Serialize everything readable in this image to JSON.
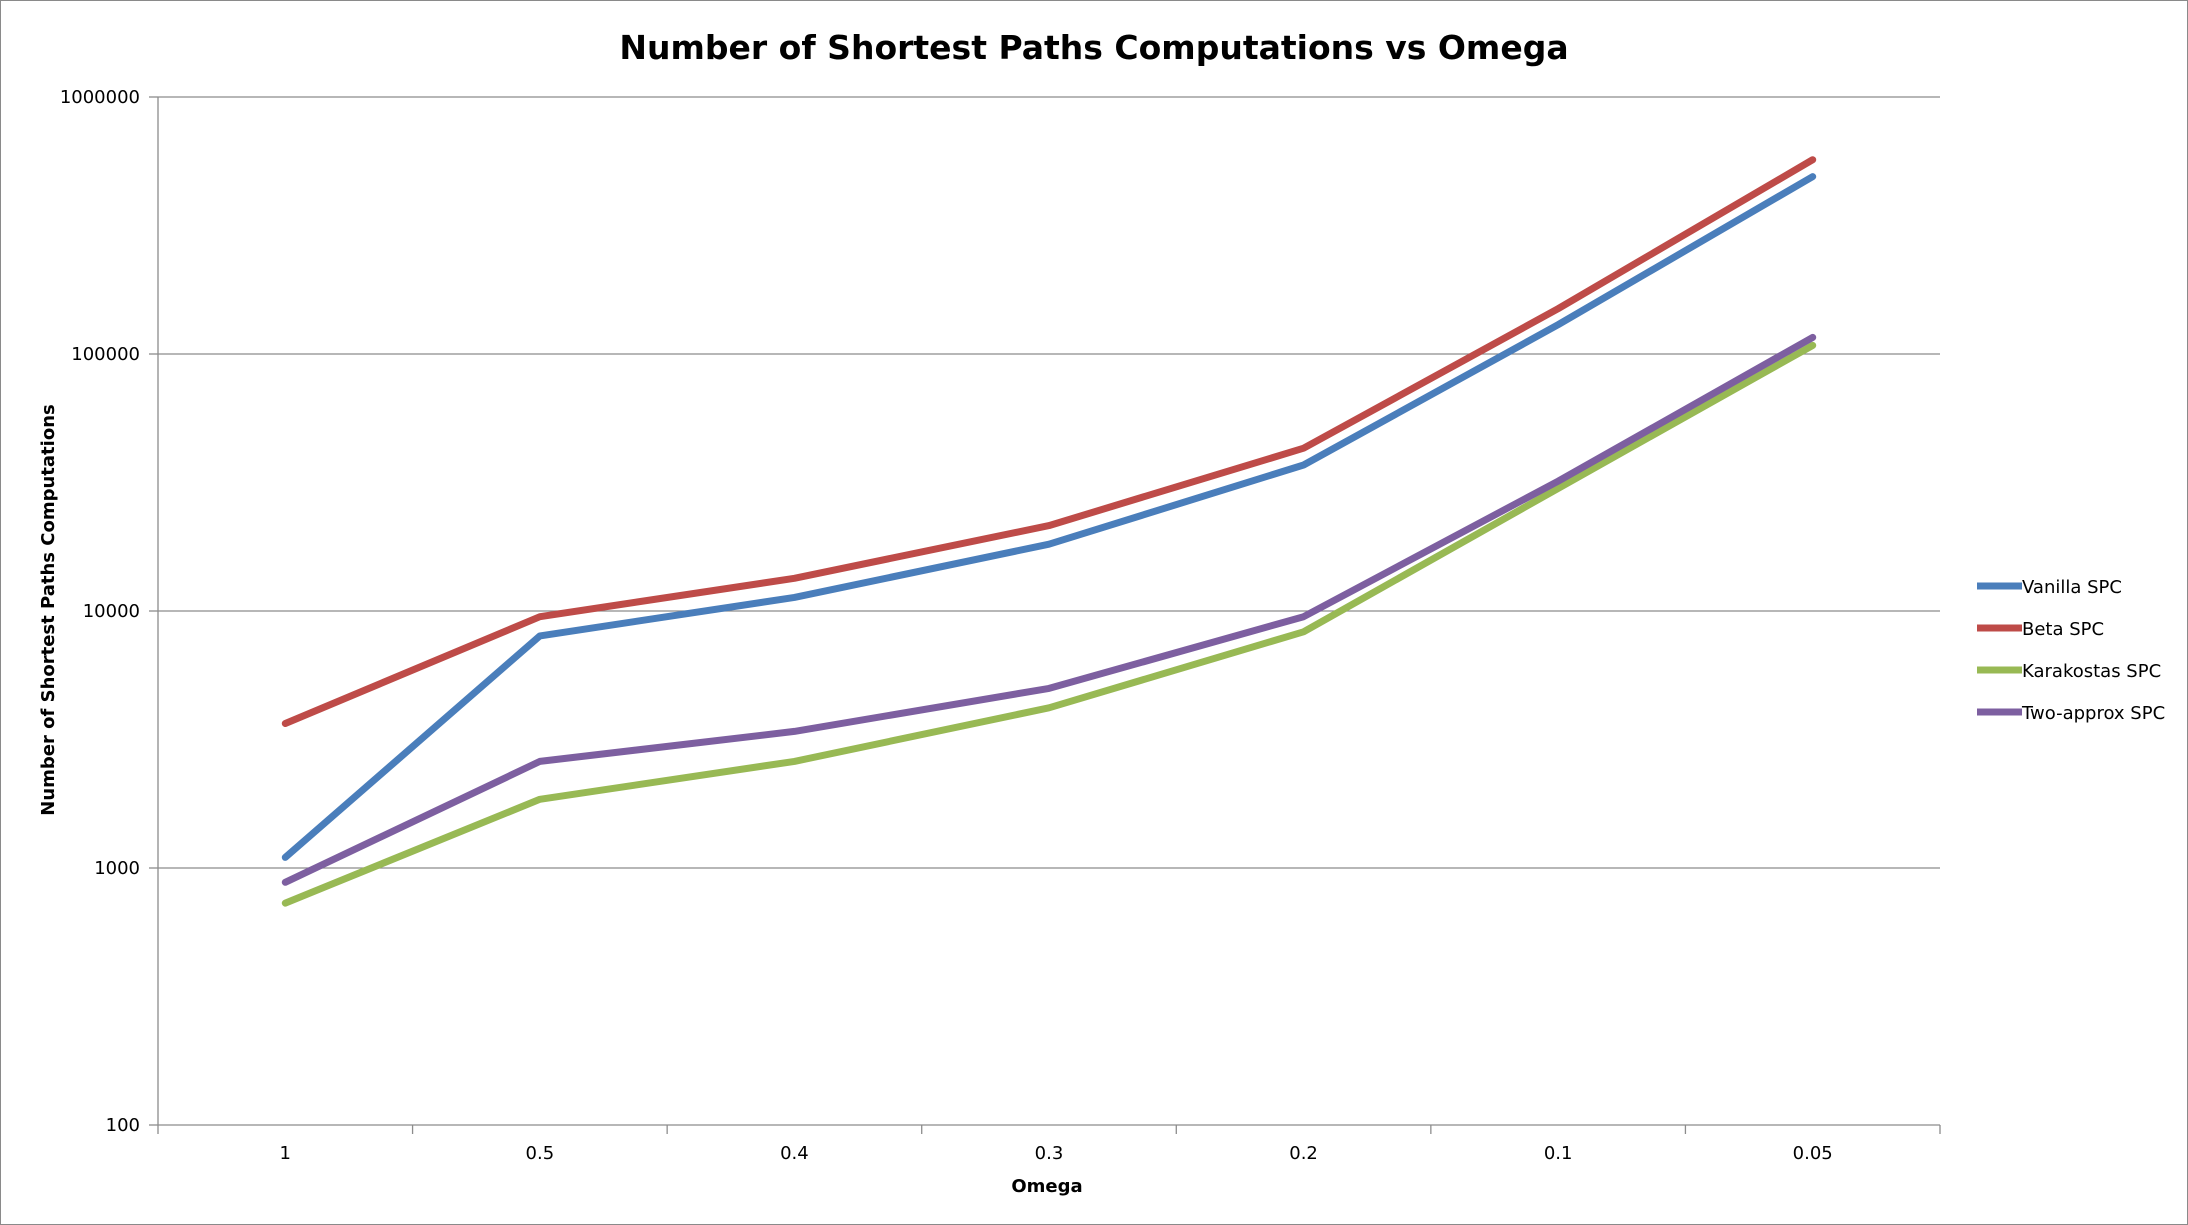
{
  "chart_data": {
    "type": "line",
    "title": "Number of Shortest Paths Computations vs Omega",
    "xlabel": "Omega",
    "ylabel": "Number of Shortest Paths Computations",
    "x": [
      "1",
      "0.5",
      "0.4",
      "0.3",
      "0.2",
      "0.1",
      "0.05"
    ],
    "yscale": "log",
    "ylim": [
      100,
      1000000
    ],
    "yticks": [
      "100",
      "1000",
      "10000",
      "100000",
      "1000000"
    ],
    "grid": "horizontal major",
    "legend_position": "right",
    "series": [
      {
        "name": "Vanilla SPC",
        "color": "#4a7ebb",
        "values": [
          1100,
          8000,
          11300,
          18200,
          37000,
          130000,
          490000
        ]
      },
      {
        "name": "Beta SPC",
        "color": "#be4b48",
        "values": [
          3650,
          9500,
          13400,
          21500,
          43000,
          150000,
          570000
        ]
      },
      {
        "name": "Karakostas SPC",
        "color": "#98b954",
        "values": [
          730,
          1850,
          2600,
          4200,
          8300,
          30000,
          108000
        ]
      },
      {
        "name": "Two-approx SPC",
        "color": "#7d5fa0",
        "values": [
          880,
          2600,
          3400,
          5000,
          9500,
          32000,
          116000
        ]
      }
    ]
  }
}
